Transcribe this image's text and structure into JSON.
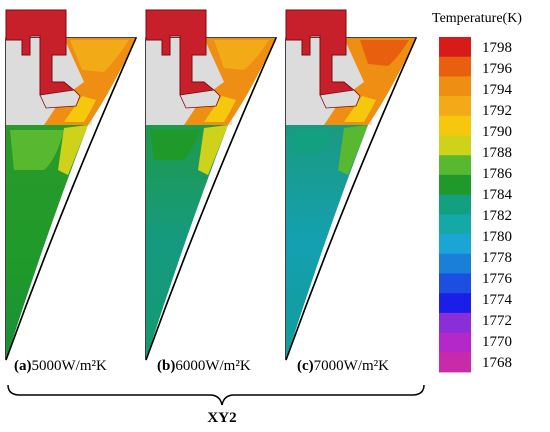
{
  "panels": [
    {
      "id": "a",
      "tag": "(a)",
      "value": "5000W/m²K"
    },
    {
      "id": "b",
      "tag": "(b)",
      "value": "6000W/m²K"
    },
    {
      "id": "c",
      "tag": "(c)",
      "value": "7000W/m²K"
    }
  ],
  "group_label": "XY2",
  "legend": {
    "title": "Temperature(K)",
    "ticks": [
      "1798",
      "1796",
      "1794",
      "1792",
      "1790",
      "1788",
      "1786",
      "1784",
      "1782",
      "1780",
      "1778",
      "1776",
      "1774",
      "1772",
      "1770",
      "1768"
    ],
    "colors": [
      "#d71a1a",
      "#e8600e",
      "#ee8f14",
      "#f3aa17",
      "#f5c80e",
      "#cfd21a",
      "#58b830",
      "#1f9a2a",
      "#12a080",
      "#14a9a6",
      "#1aa5d4",
      "#1a7fd8",
      "#1c4ee0",
      "#1a1ee8",
      "#8a2fd8",
      "#b427c8",
      "#c82aaa"
    ]
  }
}
